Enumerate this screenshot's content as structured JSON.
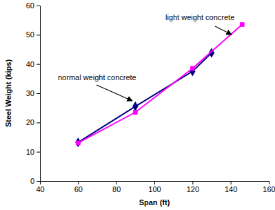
{
  "chart_data": {
    "type": "line",
    "x_label": "Span (ft)",
    "y_label": "Steel Weight (kips)",
    "xlim": [
      40,
      160
    ],
    "xticks": [
      40,
      60,
      80,
      100,
      120,
      140,
      160
    ],
    "ylim": [
      0,
      60
    ],
    "yticks": [
      0,
      10,
      20,
      30,
      40,
      50,
      60
    ],
    "grid": false,
    "series": [
      {
        "name": "normal weight concrete",
        "color": "#000080",
        "marker": "diamond",
        "line_style": "solid",
        "x": [
          60,
          90,
          120,
          130
        ],
        "values": [
          13.2,
          25.5,
          37.5,
          43.8
        ]
      },
      {
        "name": "light weight concrete",
        "color": "#ff00ff",
        "marker": "square",
        "line_style": "solid",
        "x": [
          60,
          90,
          120,
          146
        ],
        "values": [
          13,
          23.5,
          38.5,
          53.5
        ]
      }
    ],
    "annotations": [
      {
        "text": "light weight concrete"
      },
      {
        "text": "normal weight concrete"
      }
    ]
  }
}
